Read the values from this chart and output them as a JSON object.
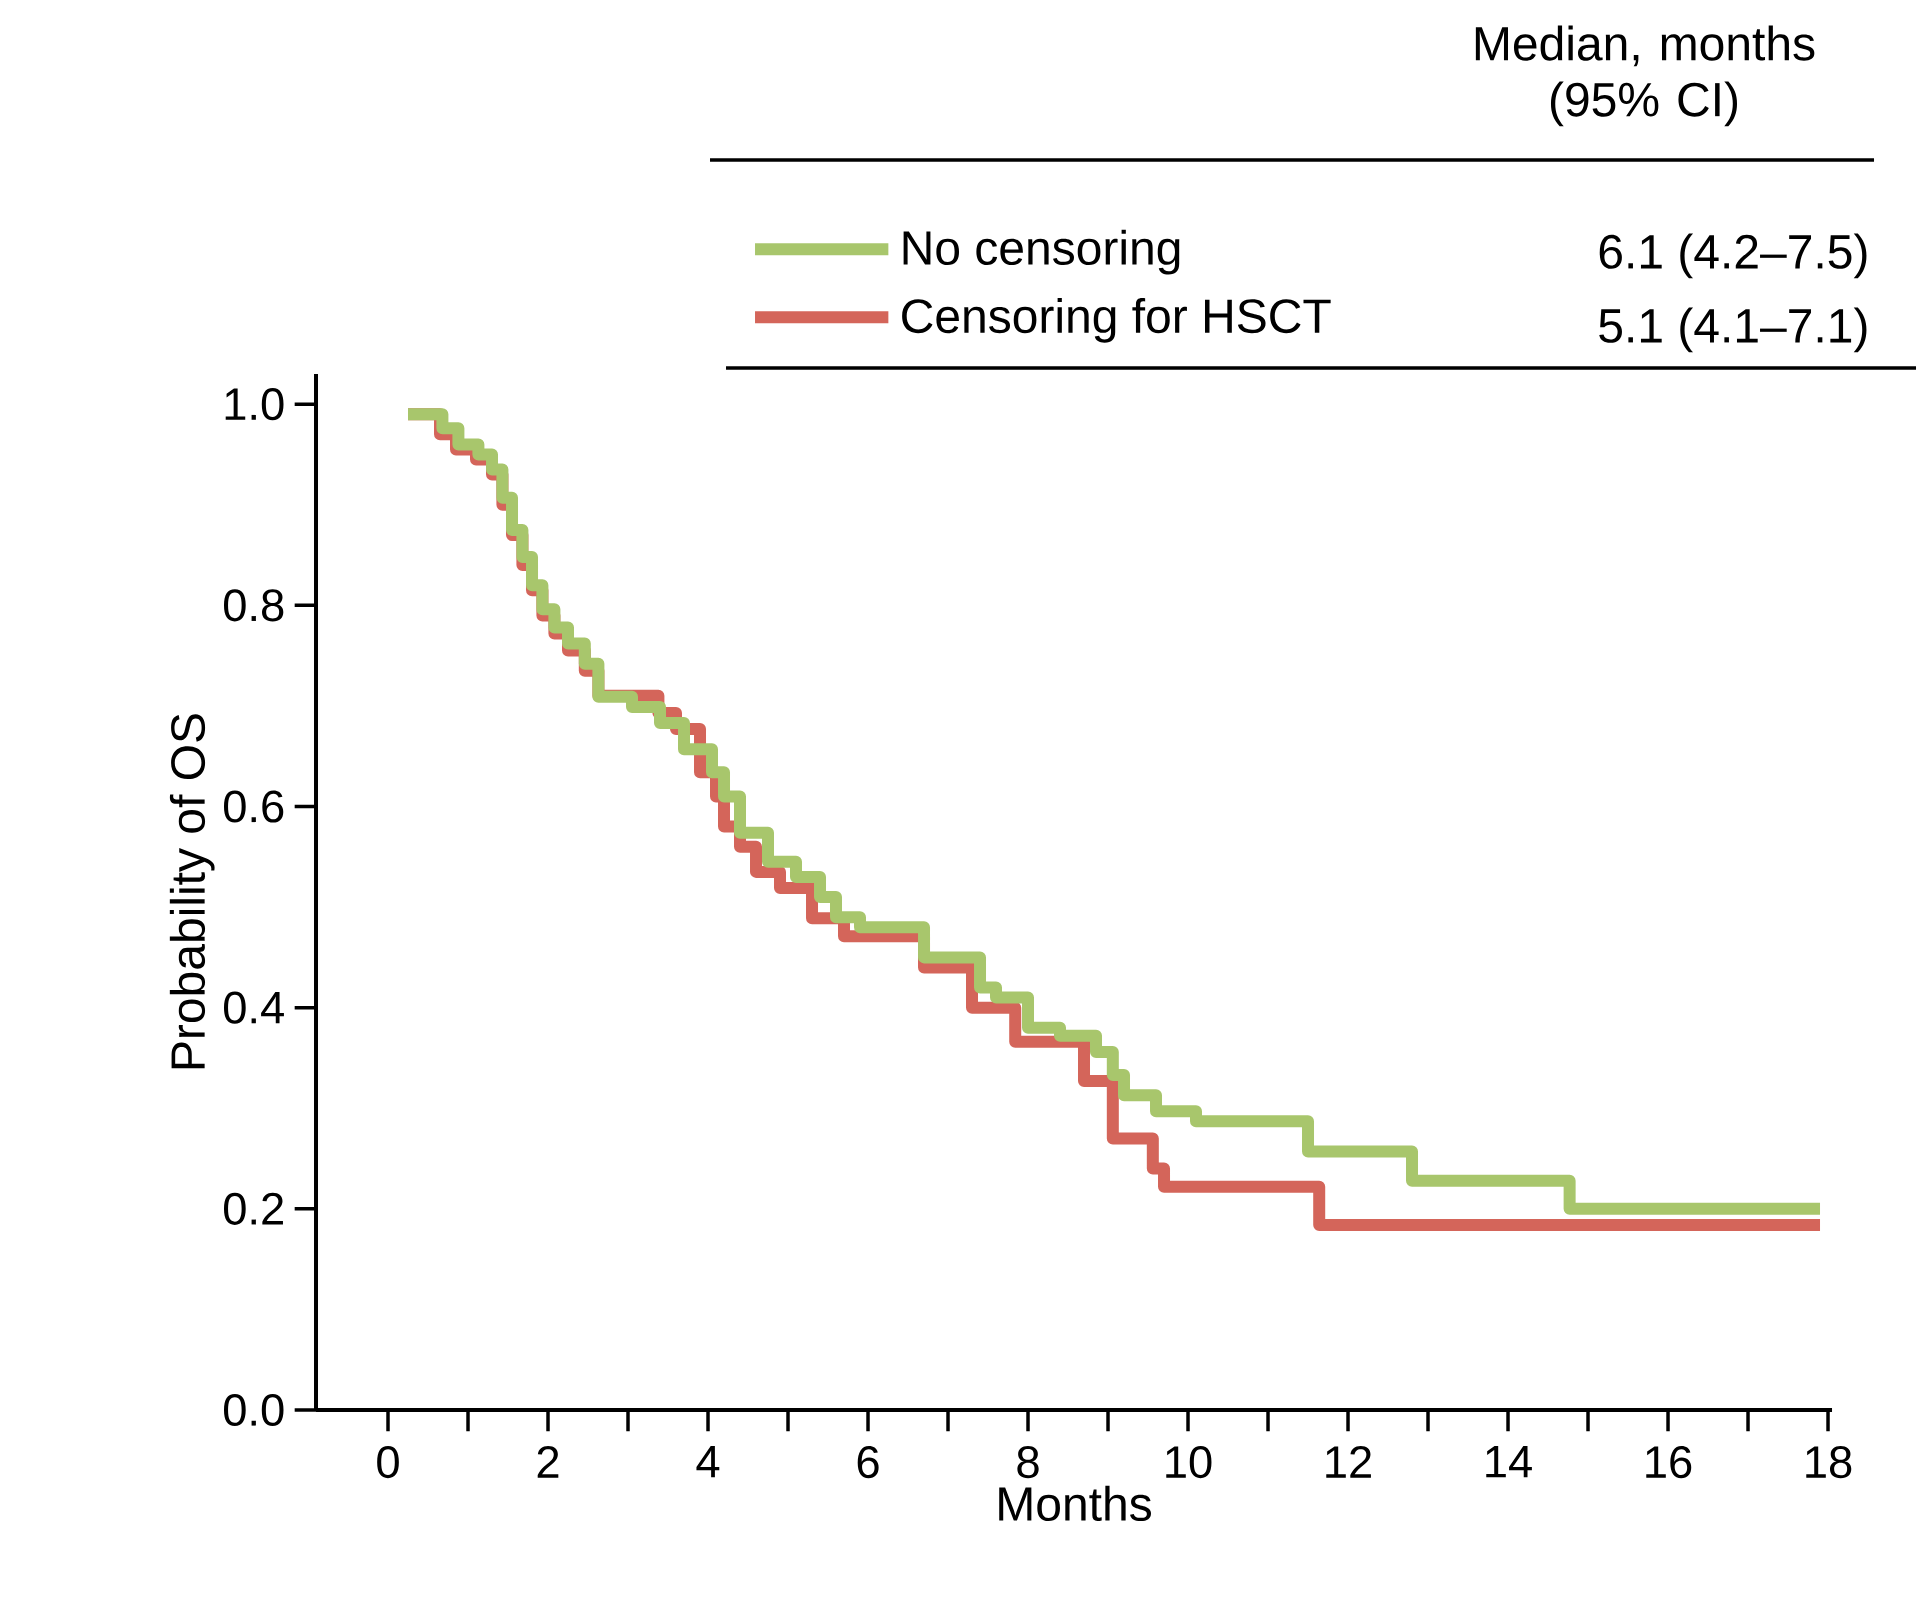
{
  "chart_data": {
    "type": "step",
    "xlabel": "Months",
    "ylabel": "Probability of OS",
    "xlim": [
      -0.9,
      18.05
    ],
    "ylim": [
      0,
      1.03
    ],
    "xticks": [
      0,
      {
        "value": 1,
        "label": null
      },
      2,
      {
        "value": 3,
        "label": null
      },
      4,
      {
        "value": 5,
        "label": null
      },
      6,
      {
        "value": 7,
        "label": null
      },
      8,
      {
        "value": 9,
        "label": null
      },
      10,
      {
        "value": 11,
        "label": null
      },
      12,
      {
        "value": 13,
        "label": null
      },
      14,
      {
        "value": 15,
        "label": null
      },
      16,
      {
        "value": 17,
        "label": null
      },
      18
    ],
    "yticks": [
      {
        "value": 0,
        "label": "0.0"
      },
      {
        "value": 0.2,
        "label": "0.2"
      },
      {
        "value": 0.4,
        "label": "0.4"
      },
      {
        "value": 0.6,
        "label": "0.6"
      },
      {
        "value": 0.8,
        "label": "0.8"
      },
      {
        "value": 1,
        "label": "1.0"
      }
    ],
    "legend": "top right",
    "grid": false,
    "marker": "none",
    "line_style": "solid",
    "annotations": [
      "Median, months (95% CI)",
      "6.1 (4.2–7.5)",
      "5.1 (4.1–7.1)"
    ],
    "series": [
      {
        "name": "No censoring",
        "color": "#a8c66c",
        "x": [
          0.25,
          0.68,
          0.88,
          1.13,
          1.3,
          1.43,
          1.55,
          1.68,
          1.8,
          1.93,
          2.08,
          2.25,
          2.46,
          2.63,
          3.05,
          3.4,
          3.7,
          4.05,
          4.2,
          4.4,
          4.75,
          5.1,
          5.4,
          5.6,
          5.9,
          6.7,
          7.4,
          7.6,
          8.0,
          8.4,
          8.85,
          9.06,
          9.2,
          9.6,
          10.1,
          11.5,
          12.8,
          14.77,
          17.9
        ],
        "values": [
          0.99,
          0.976,
          0.96,
          0.95,
          0.935,
          0.907,
          0.875,
          0.848,
          0.82,
          0.796,
          0.778,
          0.762,
          0.742,
          0.709,
          0.699,
          0.683,
          0.657,
          0.634,
          0.61,
          0.574,
          0.545,
          0.53,
          0.51,
          0.49,
          0.48,
          0.45,
          0.42,
          0.41,
          0.38,
          0.372,
          0.356,
          0.333,
          0.313,
          0.297,
          0.287,
          0.257,
          0.228,
          0.2,
          0.2
        ]
      },
      {
        "name": "Censoring for HSCT",
        "color": "#d4655a",
        "x": [
          0.25,
          0.65,
          0.85,
          1.1,
          1.3,
          1.43,
          1.55,
          1.68,
          1.8,
          1.93,
          2.08,
          2.25,
          2.46,
          2.63,
          3.38,
          3.6,
          3.9,
          4.1,
          4.2,
          4.4,
          4.6,
          4.9,
          5.3,
          5.7,
          6.7,
          7.3,
          7.84,
          8.7,
          9.06,
          9.56,
          9.7,
          11.64,
          17.9
        ],
        "values": [
          0.99,
          0.97,
          0.955,
          0.945,
          0.93,
          0.9,
          0.87,
          0.84,
          0.815,
          0.79,
          0.772,
          0.755,
          0.735,
          0.71,
          0.693,
          0.677,
          0.634,
          0.61,
          0.58,
          0.56,
          0.535,
          0.519,
          0.489,
          0.471,
          0.44,
          0.4,
          0.366,
          0.327,
          0.27,
          0.24,
          0.222,
          0.184,
          0.184
        ]
      }
    ]
  }
}
